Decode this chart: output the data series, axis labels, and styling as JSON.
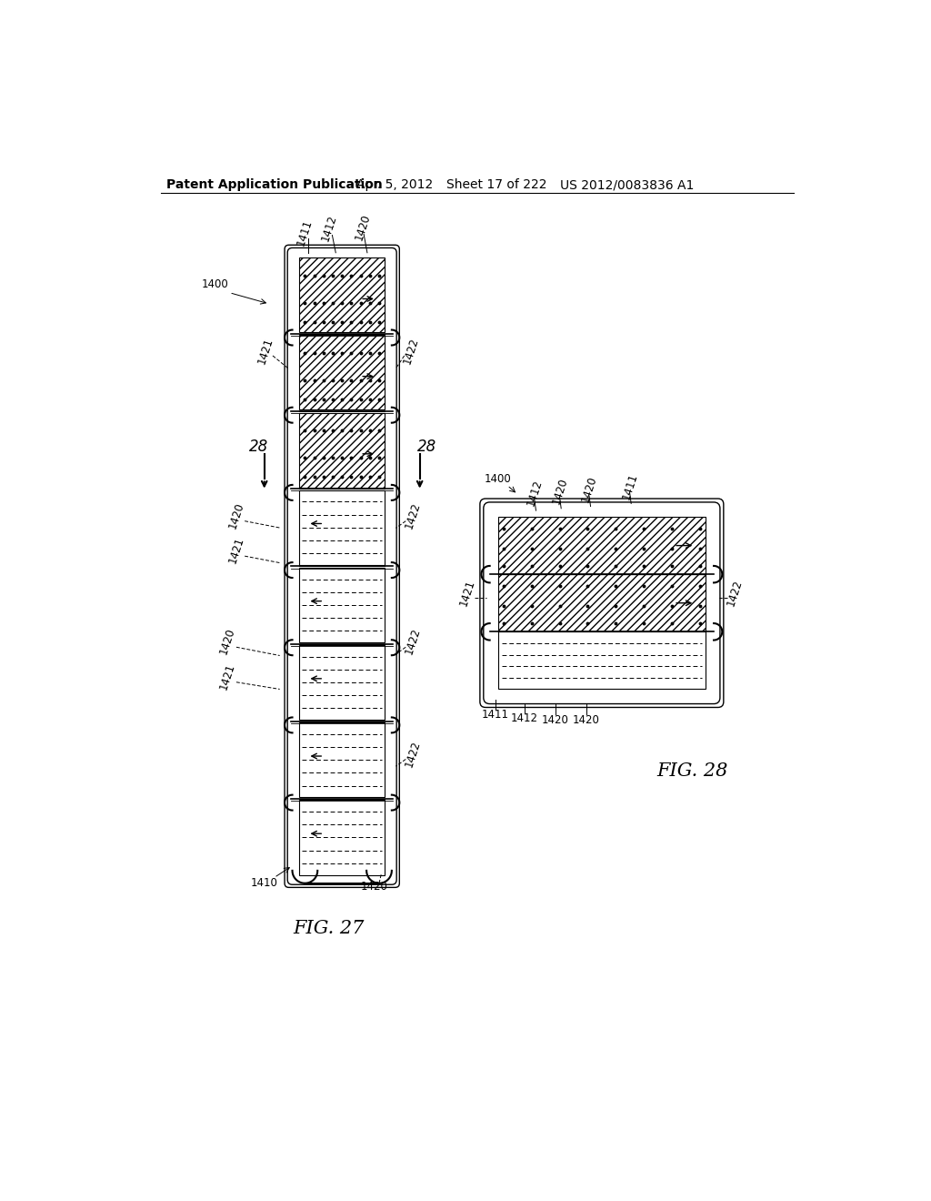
{
  "bg_color": "#ffffff",
  "line_color": "#000000",
  "header_text": "Patent Application Publication",
  "header_date": "Apr. 5, 2012",
  "header_sheet": "Sheet 17 of 222",
  "header_patent": "US 2012/0083836 A1",
  "fig27_label": "FIG. 27",
  "fig28_label": "FIG. 28",
  "font_size_header": 10,
  "font_size_ref": 8.5,
  "font_size_fig": 15
}
